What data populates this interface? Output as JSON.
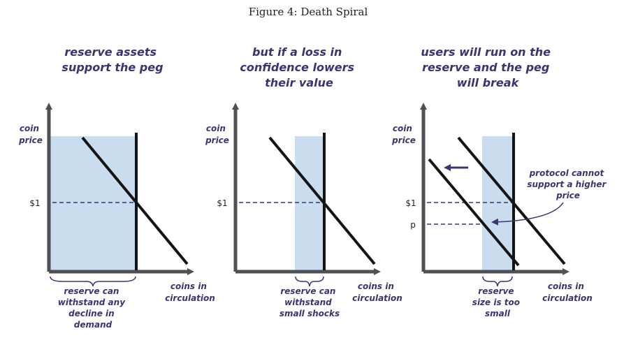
{
  "caption": "Figure 4: Death Spiral",
  "colors": {
    "ink": "#3b3470",
    "axis": "#4f4f55",
    "reserve_fill": "#c9ddee",
    "line": "#141414",
    "dash": "#3b3470"
  },
  "panels": [
    {
      "headline": [
        "reserve assets",
        "support the peg"
      ],
      "y_axis_label": [
        "coin",
        "price"
      ],
      "x_axis_label": [
        "coins in",
        "circulation"
      ],
      "price_ticks": [
        "$1"
      ],
      "bottom_note": [
        "reserve can",
        "withstand any",
        "decline in",
        "demand"
      ]
    },
    {
      "headline": [
        "but if a loss in",
        "confidence lowers",
        "their value"
      ],
      "y_axis_label": [
        "coin",
        "price"
      ],
      "x_axis_label": [
        "coins in",
        "circulation"
      ],
      "price_ticks": [
        "$1"
      ],
      "bottom_note": [
        "reserve can",
        "withstand",
        "small shocks"
      ]
    },
    {
      "headline": [
        "users will run on the",
        "reserve and the peg",
        "will break"
      ],
      "y_axis_label": [
        "coin",
        "price"
      ],
      "x_axis_label": [
        "coins in",
        "circulation"
      ],
      "price_ticks": [
        "$1",
        "p"
      ],
      "side_note": [
        "protocol cannot",
        "support a higher",
        "price"
      ],
      "bottom_note": [
        "reserve",
        "size is too",
        "small"
      ]
    }
  ]
}
